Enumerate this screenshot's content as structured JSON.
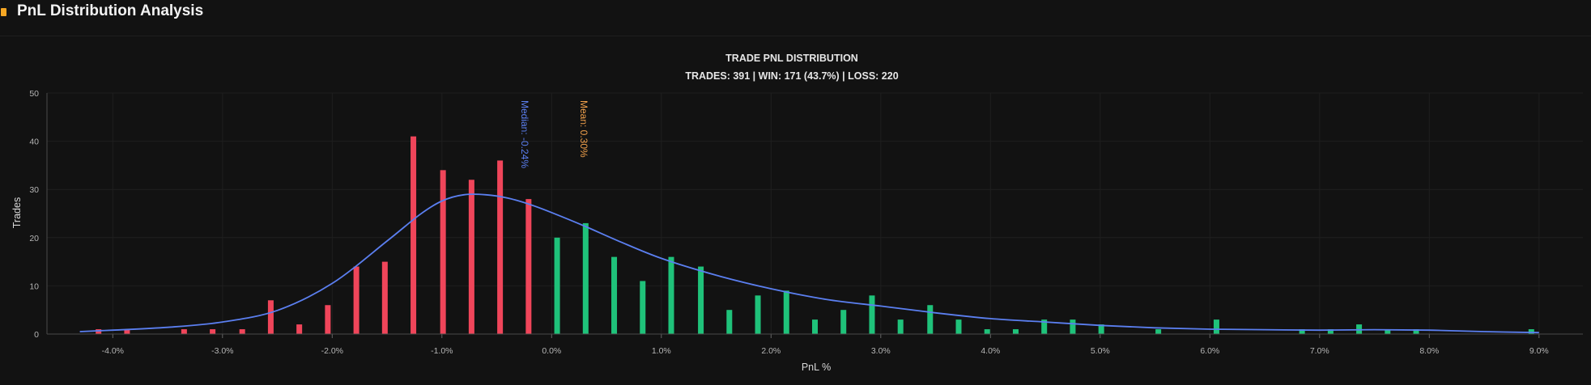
{
  "page": {
    "title": "PnL Distribution Analysis",
    "accent_color": "#f5a623"
  },
  "chart_data": {
    "type": "bar",
    "title": "TRADE PNL DISTRIBUTION",
    "subtitle": "TRADES: 391 | WIN: 171 (43.7%) | LOSS: 220",
    "xlabel": "PnL %",
    "ylabel": "Trades",
    "xlim": [
      -4.6,
      9.4
    ],
    "ylim": [
      0,
      50
    ],
    "yticks": [
      0,
      10,
      20,
      30,
      40,
      50
    ],
    "xticks": [
      -4.0,
      -3.0,
      -2.0,
      -1.0,
      0.0,
      1.0,
      2.0,
      3.0,
      4.0,
      5.0,
      6.0,
      7.0,
      8.0,
      9.0
    ],
    "xtick_labels": [
      "-4.0%",
      "-3.0%",
      "-2.0%",
      "-1.0%",
      "0.0%",
      "1.0%",
      "2.0%",
      "3.0%",
      "4.0%",
      "5.0%",
      "6.0%",
      "7.0%",
      "8.0%",
      "9.0%"
    ],
    "grid": true,
    "colors": {
      "loss": "#f0455a",
      "win": "#1fc27a",
      "curve": "#5b7ff0",
      "median": "#5b7ff0",
      "mean": "#f0a04b"
    },
    "series": [
      {
        "name": "LOSS",
        "x": [
          -4.13,
          -3.87,
          -3.35,
          -3.09,
          -2.82,
          -2.56,
          -2.3,
          -2.04,
          -1.78,
          -1.52,
          -1.26,
          -0.99,
          -0.73,
          -0.47,
          -0.21
        ],
        "values": [
          1,
          1,
          1,
          1,
          1,
          7,
          2,
          6,
          14,
          15,
          41,
          34,
          32,
          36,
          28
        ]
      },
      {
        "name": "WIN",
        "x": [
          0.05,
          0.31,
          0.57,
          0.83,
          1.09,
          1.36,
          1.62,
          1.88,
          2.14,
          2.4,
          2.66,
          2.92,
          3.18,
          3.45,
          3.71,
          3.97,
          4.23,
          4.49,
          4.75,
          5.01,
          5.53,
          6.06,
          6.84,
          7.1,
          7.36,
          7.62,
          7.88,
          8.93
        ],
        "values": [
          20,
          23,
          16,
          11,
          16,
          14,
          5,
          8,
          9,
          3,
          5,
          8,
          3,
          6,
          3,
          1,
          1,
          3,
          3,
          2,
          1,
          3,
          1,
          1,
          2,
          1,
          1,
          1
        ]
      }
    ],
    "density_curve": {
      "x": [
        -4.3,
        -4.0,
        -3.5,
        -3.0,
        -2.5,
        -2.0,
        -1.5,
        -1.2,
        -1.0,
        -0.8,
        -0.6,
        -0.4,
        -0.2,
        0.0,
        0.3,
        0.6,
        1.0,
        1.5,
        2.0,
        2.5,
        3.0,
        3.5,
        4.0,
        4.5,
        5.0,
        5.5,
        6.0,
        6.5,
        7.0,
        7.5,
        8.0,
        8.5,
        9.0
      ],
      "y": [
        0.5,
        0.8,
        1.4,
        2.5,
        4.9,
        10.5,
        19.3,
        24.8,
        27.6,
        28.9,
        28.9,
        28.2,
        26.9,
        25.2,
        22.4,
        19.4,
        15.7,
        12.2,
        9.4,
        7.2,
        5.8,
        4.4,
        3.2,
        2.5,
        1.8,
        1.3,
        1.0,
        0.9,
        0.8,
        0.9,
        0.8,
        0.5,
        0.3
      ]
    },
    "annotations": [
      {
        "label": "Median: -0.24%",
        "x": -0.24,
        "color": "#5b7ff0"
      },
      {
        "label": "Mean: 0.30%",
        "x": 0.3,
        "color": "#f0a04b"
      }
    ]
  }
}
